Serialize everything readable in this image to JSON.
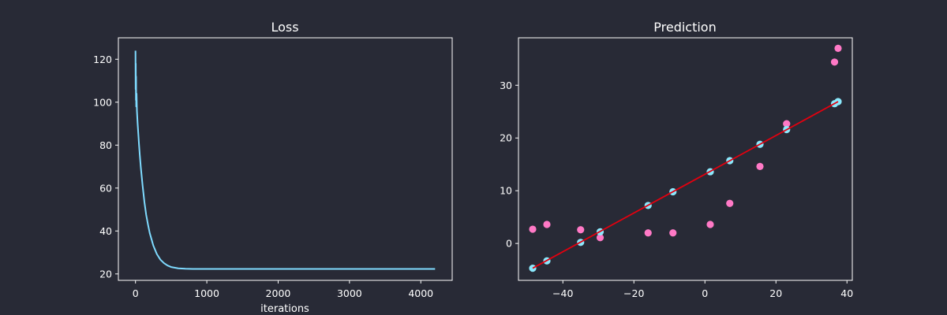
{
  "figure": {
    "background": "#282a36",
    "text_color": "#ffffff",
    "axis_color": "#ffffff"
  },
  "chart_data": [
    {
      "type": "line",
      "title": "Loss",
      "xlabel": "iterations",
      "ylabel": "",
      "xlim": [
        -240,
        4440
      ],
      "ylim": [
        17,
        130
      ],
      "xticks": [
        0,
        1000,
        2000,
        3000,
        4000
      ],
      "xtick_labels": [
        "0",
        "1000",
        "2000",
        "3000",
        "4000"
      ],
      "yticks": [
        20,
        40,
        60,
        80,
        100,
        120
      ],
      "ytick_labels": [
        "20",
        "40",
        "60",
        "80",
        "100",
        "120"
      ],
      "grid": false,
      "series": [
        {
          "color": "#7fdbff",
          "note_pattern": "noisy start",
          "x": [
            0,
            2,
            4,
            6,
            8,
            10,
            15,
            20,
            30,
            40,
            50,
            60,
            75,
            100,
            125,
            150,
            175,
            200,
            250,
            300,
            350,
            400,
            450,
            500,
            600,
            700,
            800,
            1000,
            1500,
            2000,
            3000,
            4000,
            4200
          ],
          "y": [
            124,
            106,
            118,
            101,
            112,
            98,
            104,
            96,
            90,
            85,
            80,
            75.5,
            69.5,
            61,
            53.5,
            47.5,
            43,
            39,
            33.2,
            29.2,
            26.6,
            25,
            23.9,
            23.2,
            22.6,
            22.4,
            22.3,
            22.3,
            22.3,
            22.3,
            22.3,
            22.3,
            22.3
          ]
        }
      ]
    },
    {
      "type": "scatter",
      "title": "Prediction",
      "xlabel": "",
      "ylabel": "",
      "xlim": [
        -52.5,
        41.5
      ],
      "ylim": [
        -7,
        39
      ],
      "xticks": [
        -40,
        -20,
        0,
        20,
        40
      ],
      "xtick_labels": [
        "−40",
        "−20",
        "0",
        "20",
        "40"
      ],
      "yticks": [
        0,
        10,
        20,
        30
      ],
      "ytick_labels": [
        "0",
        "10",
        "20",
        "30"
      ],
      "grid": false,
      "series": [
        {
          "kind": "scatter",
          "color": "#ff79c6",
          "points": [
            [
              -48.5,
              2.7
            ],
            [
              -44.5,
              3.6
            ],
            [
              -35,
              2.6
            ],
            [
              -29.5,
              1.1
            ],
            [
              -16,
              2
            ],
            [
              -9,
              2
            ],
            [
              1.5,
              3.6
            ],
            [
              7,
              7.6
            ],
            [
              15.5,
              14.6
            ],
            [
              23,
              22.7
            ],
            [
              36.5,
              34.4
            ],
            [
              37.5,
              37
            ]
          ]
        },
        {
          "kind": "scatter",
          "color": "#8be9fd",
          "points": [
            [
              -48.5,
              -4.7
            ],
            [
              -44.5,
              -3.3
            ],
            [
              -35,
              0.2
            ],
            [
              -29.5,
              2.2
            ],
            [
              -16,
              7.2
            ],
            [
              -9,
              9.8
            ],
            [
              1.5,
              13.6
            ],
            [
              7,
              15.7
            ],
            [
              15.5,
              18.8
            ],
            [
              23,
              21.6
            ],
            [
              36.5,
              26.5
            ],
            [
              37.5,
              26.9
            ]
          ]
        },
        {
          "kind": "line",
          "color": "#e3000f",
          "points": [
            [
              -48.5,
              -4.7
            ],
            [
              37.5,
              26.9
            ]
          ]
        }
      ]
    }
  ]
}
